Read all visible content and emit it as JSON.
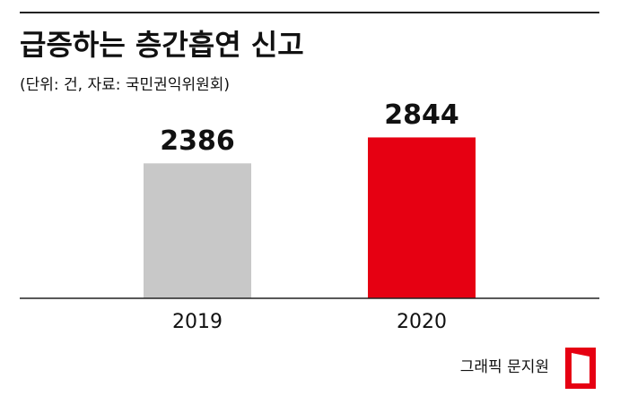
{
  "chart_data": {
    "type": "bar",
    "title": "급증하는 층간흡연 신고",
    "subtitle": "(단위: 건, 자료: 국민권익위원회)",
    "categories": [
      "2019",
      "2020"
    ],
    "values": [
      2386,
      2844
    ],
    "colors": [
      "#c8c8c8",
      "#e60012"
    ],
    "ylim": [
      0,
      3500
    ],
    "credit": "그래픽 문지원"
  }
}
